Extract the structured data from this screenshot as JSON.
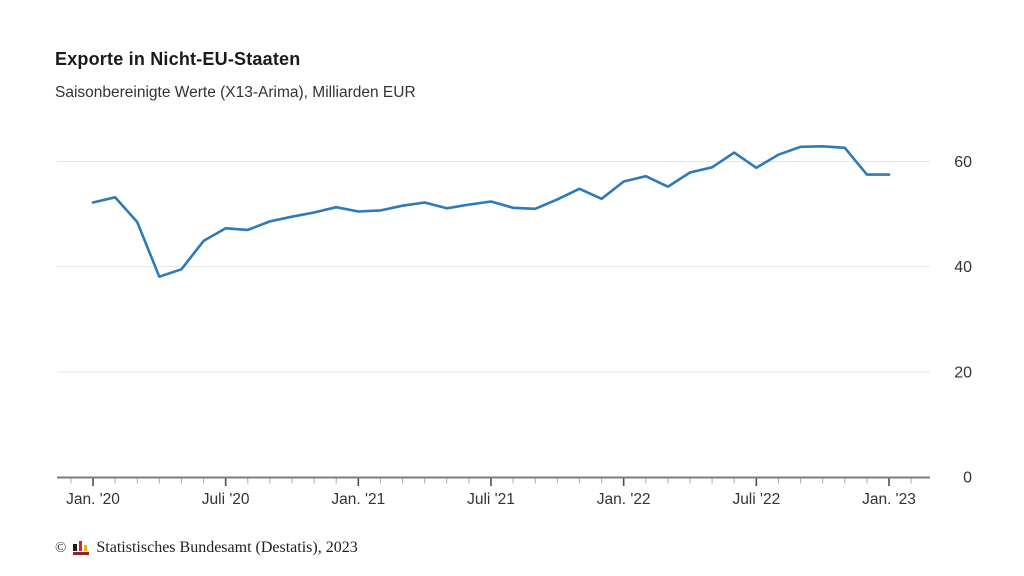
{
  "header": {
    "title": "Exporte in Nicht-EU-Staaten",
    "subtitle": "Saisonbereinigte Werte (X13-Arima), Milliarden EUR"
  },
  "chart_data": {
    "type": "line",
    "title": "Exporte in Nicht-EU-Staaten",
    "subtitle": "Saisonbereinigte Werte (X13-Arima), Milliarden EUR",
    "ylabel": "Milliarden EUR",
    "x": [
      "2020-01",
      "2020-02",
      "2020-03",
      "2020-04",
      "2020-05",
      "2020-06",
      "2020-07",
      "2020-08",
      "2020-09",
      "2020-10",
      "2020-11",
      "2020-12",
      "2021-01",
      "2021-02",
      "2021-03",
      "2021-04",
      "2021-05",
      "2021-06",
      "2021-07",
      "2021-08",
      "2021-09",
      "2021-10",
      "2021-11",
      "2021-12",
      "2022-01",
      "2022-02",
      "2022-03",
      "2022-04",
      "2022-05",
      "2022-06",
      "2022-07",
      "2022-08",
      "2022-09",
      "2022-10",
      "2022-11",
      "2022-12",
      "2023-01"
    ],
    "series": [
      {
        "name": "Exporte in Nicht-EU-Staaten",
        "values": [
          52.2,
          53.2,
          48.5,
          38.1,
          39.5,
          44.9,
          47.3,
          47.0,
          48.6,
          49.5,
          50.3,
          51.3,
          50.5,
          50.7,
          51.6,
          52.2,
          51.1,
          51.8,
          52.4,
          51.2,
          51.0,
          52.8,
          54.8,
          52.9,
          56.2,
          57.2,
          55.2,
          57.9,
          58.9,
          61.7,
          58.8,
          61.3,
          62.8,
          62.9,
          62.6,
          57.5,
          57.5
        ]
      }
    ],
    "x_tick_labels": [
      "Jan. '20",
      "Juli '20",
      "Jan. '21",
      "Juli '21",
      "Jan. '22",
      "Juli '22",
      "Jan. '23"
    ],
    "x_tick_month_indices": [
      0,
      6,
      12,
      18,
      24,
      30,
      36
    ],
    "y_ticks": [
      0,
      20,
      40,
      60
    ],
    "ylim": [
      0,
      66
    ],
    "grid": true,
    "legend": false,
    "y_axis_side": "right",
    "line_color": "#2e79b8"
  },
  "colors": {
    "line": "#2e79b8",
    "grid": "#e4e4e4",
    "axis": "#7d7d7d",
    "tick_minor": "#b0b0b0",
    "tick_major": "#4d4d4d",
    "tick_text": "#333333",
    "title_text": "#1a1a1a"
  },
  "footer": {
    "copyright": "©",
    "source": "Statistisches Bundesamt (Destatis), 2023",
    "logo_colors": {
      "bar_black": "#1d1d1b",
      "bar_red": "#d2232e",
      "bar_gold": "#eab300",
      "base": "#8f2430"
    }
  }
}
